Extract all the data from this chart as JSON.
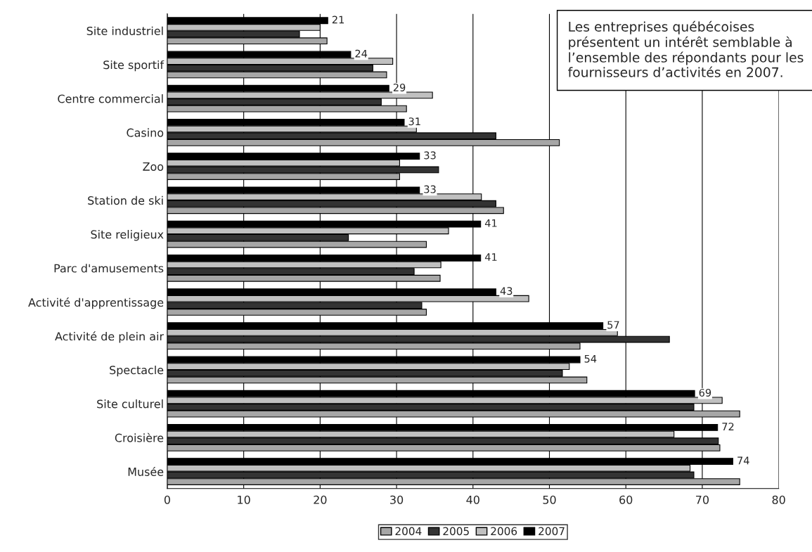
{
  "chart_data": {
    "type": "bar",
    "orientation": "horizontal",
    "categories": [
      "Site industriel",
      "Site sportif",
      "Centre commercial",
      "Casino",
      "Zoo",
      "Station de ski",
      "Site religieux",
      "Parc d'amusements",
      "Activité d'apprentissage",
      "Activité de plein air",
      "Spectacle",
      "Site culturel",
      "Croisière",
      "Musée"
    ],
    "series": [
      {
        "name": "2004",
        "color": "#a6a6a6",
        "values": [
          20.9,
          28.7,
          31.3,
          51.3,
          30.4,
          44.0,
          33.9,
          35.7,
          33.9,
          54.0,
          54.9,
          74.9,
          72.3,
          74.9
        ]
      },
      {
        "name": "2005",
        "color": "#333333",
        "values": [
          17.3,
          26.9,
          28.0,
          43.0,
          35.5,
          43.0,
          23.7,
          32.3,
          33.3,
          65.7,
          51.7,
          68.9,
          72.1,
          68.9
        ]
      },
      {
        "name": "2006",
        "color": "#c0c0c0",
        "values": [
          20.0,
          29.5,
          34.7,
          32.6,
          30.4,
          41.1,
          36.8,
          35.8,
          47.3,
          58.9,
          52.6,
          72.6,
          66.3,
          68.4
        ]
      },
      {
        "name": "2007",
        "color": "#000000",
        "values": [
          21,
          24,
          29,
          31,
          33,
          33,
          41,
          41,
          43,
          57,
          54,
          69,
          72,
          74
        ],
        "value_labels": [
          "21",
          "24",
          "29",
          "31",
          "33",
          "33",
          "41",
          "41",
          "43",
          "57",
          "54",
          "69",
          "72",
          "74"
        ]
      }
    ],
    "xlim": [
      0,
      80
    ],
    "xticks": [
      0,
      10,
      20,
      30,
      40,
      50,
      60,
      70,
      80
    ],
    "grid": "x",
    "legend": "bottom",
    "annotations": [
      "Les entreprises québécoises\nprésentent un intérêt semblable à\nl’ensemble des répondants pour les\nfournisseurs d’activités en 2007."
    ]
  }
}
